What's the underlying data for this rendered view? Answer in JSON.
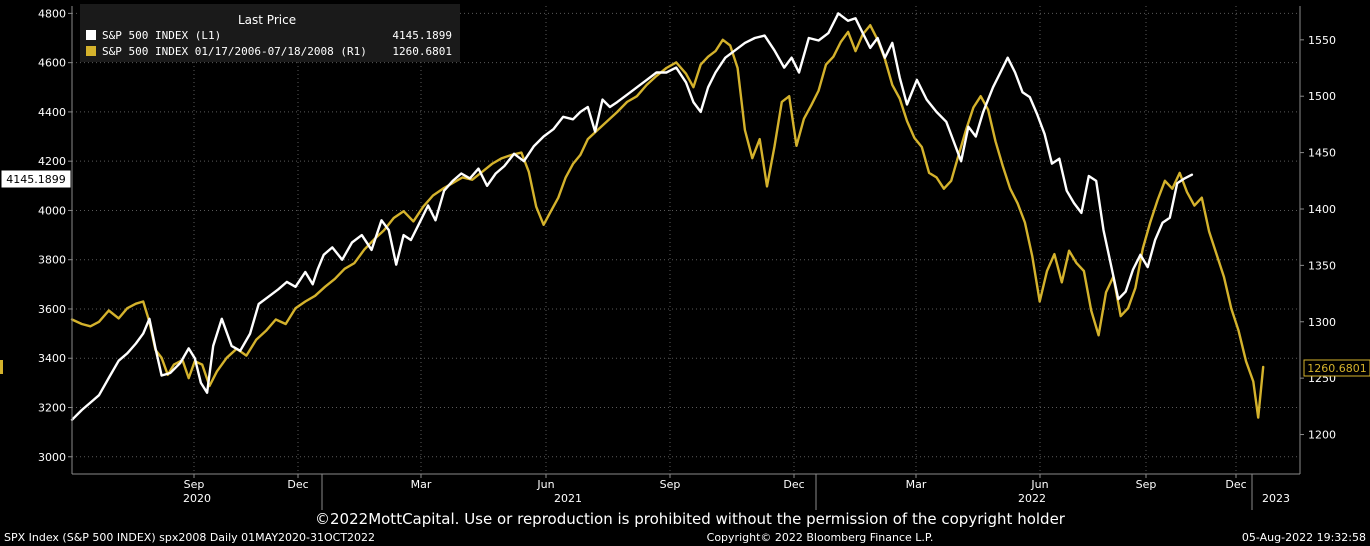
{
  "chart_data": {
    "type": "line",
    "colors": {
      "background": "#000000",
      "grid": "#5a5a5a",
      "axis": "#8a8a8a",
      "series_l1": "#ffffff",
      "series_r1": "#d4b22c",
      "legend_bg": "#1a1a1a"
    },
    "legend": {
      "title": "Last Price",
      "placement": "top-left",
      "entries": [
        {
          "label": "S&P 500 INDEX  (L1)",
          "value": "4145.1899"
        },
        {
          "label": "S&P 500 INDEX 01/17/2006-07/18/2008  (R1)",
          "value": "1260.6801"
        }
      ]
    },
    "left_axis": {
      "ylim": [
        2930,
        4830
      ],
      "ticks": [
        "3000",
        "3200",
        "3400",
        "3600",
        "3800",
        "4000",
        "4200",
        "4400",
        "4600",
        "4800"
      ]
    },
    "right_axis": {
      "ylim": [
        1165,
        1580
      ],
      "ticks": [
        "1200",
        "1250",
        "1300",
        "1350",
        "1400",
        "1450",
        "1500",
        "1550"
      ]
    },
    "x_axis": {
      "month_ticks": [
        "Sep",
        "Dec",
        "Mar",
        "Jun",
        "Sep",
        "Dec",
        "Mar",
        "Jun",
        "Sep",
        "Dec"
      ],
      "year_labels": [
        "2020",
        "2021",
        "2022",
        "2023"
      ]
    },
    "last_value_tags": {
      "left": "4145.1899",
      "right": "1260.6801"
    },
    "series": [
      {
        "name": "S&P 500 INDEX  (L1)",
        "axis": "left",
        "points": [
          [
            0.0,
            3150
          ],
          [
            0.008,
            3190
          ],
          [
            0.015,
            3220
          ],
          [
            0.022,
            3250
          ],
          [
            0.03,
            3320
          ],
          [
            0.038,
            3390
          ],
          [
            0.045,
            3420
          ],
          [
            0.052,
            3460
          ],
          [
            0.058,
            3500
          ],
          [
            0.063,
            3560
          ],
          [
            0.068,
            3440
          ],
          [
            0.073,
            3330
          ],
          [
            0.08,
            3340
          ],
          [
            0.088,
            3380
          ],
          [
            0.095,
            3440
          ],
          [
            0.1,
            3400
          ],
          [
            0.105,
            3300
          ],
          [
            0.11,
            3260
          ],
          [
            0.115,
            3450
          ],
          [
            0.122,
            3560
          ],
          [
            0.13,
            3450
          ],
          [
            0.137,
            3430
          ],
          [
            0.145,
            3500
          ],
          [
            0.152,
            3620
          ],
          [
            0.16,
            3650
          ],
          [
            0.168,
            3680
          ],
          [
            0.175,
            3710
          ],
          [
            0.182,
            3690
          ],
          [
            0.19,
            3750
          ],
          [
            0.196,
            3700
          ],
          [
            0.2,
            3760
          ],
          [
            0.205,
            3820
          ],
          [
            0.212,
            3850
          ],
          [
            0.22,
            3800
          ],
          [
            0.228,
            3870
          ],
          [
            0.236,
            3900
          ],
          [
            0.244,
            3840
          ],
          [
            0.252,
            3960
          ],
          [
            0.258,
            3920
          ],
          [
            0.264,
            3780
          ],
          [
            0.27,
            3900
          ],
          [
            0.276,
            3880
          ],
          [
            0.283,
            3950
          ],
          [
            0.29,
            4020
          ],
          [
            0.296,
            3960
          ],
          [
            0.303,
            4080
          ],
          [
            0.31,
            4120
          ],
          [
            0.317,
            4150
          ],
          [
            0.324,
            4130
          ],
          [
            0.331,
            4170
          ],
          [
            0.338,
            4100
          ],
          [
            0.345,
            4150
          ],
          [
            0.352,
            4180
          ],
          [
            0.36,
            4230
          ],
          [
            0.368,
            4200
          ],
          [
            0.376,
            4260
          ],
          [
            0.384,
            4300
          ],
          [
            0.392,
            4330
          ],
          [
            0.4,
            4380
          ],
          [
            0.408,
            4370
          ],
          [
            0.414,
            4400
          ],
          [
            0.42,
            4420
          ],
          [
            0.426,
            4320
          ],
          [
            0.432,
            4450
          ],
          [
            0.438,
            4420
          ],
          [
            0.444,
            4440
          ],
          [
            0.452,
            4470
          ],
          [
            0.46,
            4500
          ],
          [
            0.468,
            4530
          ],
          [
            0.476,
            4560
          ],
          [
            0.484,
            4560
          ],
          [
            0.492,
            4580
          ],
          [
            0.5,
            4520
          ],
          [
            0.506,
            4440
          ],
          [
            0.512,
            4400
          ],
          [
            0.518,
            4500
          ],
          [
            0.524,
            4560
          ],
          [
            0.532,
            4620
          ],
          [
            0.54,
            4650
          ],
          [
            0.548,
            4680
          ],
          [
            0.556,
            4700
          ],
          [
            0.564,
            4710
          ],
          [
            0.572,
            4650
          ],
          [
            0.58,
            4580
          ],
          [
            0.586,
            4620
          ],
          [
            0.592,
            4560
          ],
          [
            0.6,
            4700
          ],
          [
            0.608,
            4690
          ],
          [
            0.616,
            4720
          ],
          [
            0.624,
            4800
          ],
          [
            0.632,
            4770
          ],
          [
            0.638,
            4780
          ],
          [
            0.644,
            4720
          ],
          [
            0.65,
            4660
          ],
          [
            0.656,
            4700
          ],
          [
            0.662,
            4620
          ],
          [
            0.668,
            4680
          ],
          [
            0.674,
            4540
          ],
          [
            0.68,
            4430
          ],
          [
            0.688,
            4530
          ],
          [
            0.696,
            4450
          ],
          [
            0.704,
            4400
          ],
          [
            0.712,
            4360
          ],
          [
            0.718,
            4280
          ],
          [
            0.724,
            4200
          ],
          [
            0.73,
            4340
          ],
          [
            0.736,
            4300
          ],
          [
            0.742,
            4400
          ],
          [
            0.75,
            4500
          ],
          [
            0.756,
            4560
          ],
          [
            0.762,
            4620
          ],
          [
            0.768,
            4560
          ],
          [
            0.774,
            4480
          ],
          [
            0.78,
            4460
          ],
          [
            0.786,
            4390
          ],
          [
            0.792,
            4310
          ],
          [
            0.798,
            4190
          ],
          [
            0.804,
            4210
          ],
          [
            0.81,
            4080
          ],
          [
            0.816,
            4030
          ],
          [
            0.822,
            3990
          ],
          [
            0.828,
            4140
          ],
          [
            0.834,
            4120
          ],
          [
            0.84,
            3920
          ],
          [
            0.846,
            3780
          ],
          [
            0.852,
            3640
          ],
          [
            0.858,
            3670
          ],
          [
            0.864,
            3760
          ],
          [
            0.87,
            3820
          ],
          [
            0.876,
            3770
          ],
          [
            0.882,
            3880
          ],
          [
            0.888,
            3950
          ],
          [
            0.894,
            3970
          ],
          [
            0.9,
            4110
          ],
          [
            0.906,
            4130
          ],
          [
            0.912,
            4145
          ]
        ]
      },
      {
        "name": "S&P 500 INDEX 01/17/2006-07/18/2008  (R1)",
        "axis": "right",
        "points": [
          [
            0.0,
            1302
          ],
          [
            0.008,
            1298
          ],
          [
            0.015,
            1296
          ],
          [
            0.022,
            1300
          ],
          [
            0.03,
            1310
          ],
          [
            0.038,
            1303
          ],
          [
            0.045,
            1312
          ],
          [
            0.052,
            1316
          ],
          [
            0.058,
            1318
          ],
          [
            0.063,
            1300
          ],
          [
            0.068,
            1275
          ],
          [
            0.073,
            1268
          ],
          [
            0.078,
            1253
          ],
          [
            0.083,
            1262
          ],
          [
            0.09,
            1266
          ],
          [
            0.095,
            1250
          ],
          [
            0.1,
            1265
          ],
          [
            0.106,
            1262
          ],
          [
            0.112,
            1243
          ],
          [
            0.118,
            1256
          ],
          [
            0.126,
            1268
          ],
          [
            0.134,
            1276
          ],
          [
            0.142,
            1270
          ],
          [
            0.15,
            1284
          ],
          [
            0.158,
            1292
          ],
          [
            0.166,
            1302
          ],
          [
            0.174,
            1298
          ],
          [
            0.182,
            1312
          ],
          [
            0.19,
            1318
          ],
          [
            0.198,
            1323
          ],
          [
            0.206,
            1331
          ],
          [
            0.214,
            1338
          ],
          [
            0.222,
            1347
          ],
          [
            0.23,
            1352
          ],
          [
            0.238,
            1364
          ],
          [
            0.246,
            1373
          ],
          [
            0.254,
            1381
          ],
          [
            0.262,
            1392
          ],
          [
            0.27,
            1398
          ],
          [
            0.278,
            1389
          ],
          [
            0.286,
            1402
          ],
          [
            0.294,
            1412
          ],
          [
            0.302,
            1418
          ],
          [
            0.31,
            1423
          ],
          [
            0.318,
            1428
          ],
          [
            0.326,
            1426
          ],
          [
            0.334,
            1433
          ],
          [
            0.342,
            1440
          ],
          [
            0.35,
            1445
          ],
          [
            0.358,
            1448
          ],
          [
            0.366,
            1450
          ],
          [
            0.372,
            1433
          ],
          [
            0.378,
            1402
          ],
          [
            0.384,
            1386
          ],
          [
            0.39,
            1398
          ],
          [
            0.396,
            1410
          ],
          [
            0.402,
            1428
          ],
          [
            0.408,
            1440
          ],
          [
            0.414,
            1448
          ],
          [
            0.42,
            1462
          ],
          [
            0.428,
            1470
          ],
          [
            0.436,
            1478
          ],
          [
            0.444,
            1486
          ],
          [
            0.452,
            1495
          ],
          [
            0.46,
            1500
          ],
          [
            0.468,
            1510
          ],
          [
            0.476,
            1518
          ],
          [
            0.484,
            1525
          ],
          [
            0.492,
            1530
          ],
          [
            0.5,
            1520
          ],
          [
            0.506,
            1508
          ],
          [
            0.512,
            1528
          ],
          [
            0.518,
            1535
          ],
          [
            0.524,
            1540
          ],
          [
            0.53,
            1550
          ],
          [
            0.536,
            1545
          ],
          [
            0.542,
            1525
          ],
          [
            0.548,
            1470
          ],
          [
            0.554,
            1445
          ],
          [
            0.56,
            1462
          ],
          [
            0.566,
            1420
          ],
          [
            0.572,
            1455
          ],
          [
            0.578,
            1495
          ],
          [
            0.584,
            1500
          ],
          [
            0.59,
            1456
          ],
          [
            0.596,
            1480
          ],
          [
            0.602,
            1492
          ],
          [
            0.608,
            1505
          ],
          [
            0.614,
            1528
          ],
          [
            0.62,
            1535
          ],
          [
            0.626,
            1548
          ],
          [
            0.632,
            1557
          ],
          [
            0.638,
            1540
          ],
          [
            0.644,
            1555
          ],
          [
            0.65,
            1563
          ],
          [
            0.656,
            1550
          ],
          [
            0.662,
            1533
          ],
          [
            0.668,
            1510
          ],
          [
            0.674,
            1498
          ],
          [
            0.68,
            1478
          ],
          [
            0.686,
            1463
          ],
          [
            0.692,
            1455
          ],
          [
            0.698,
            1432
          ],
          [
            0.704,
            1428
          ],
          [
            0.71,
            1418
          ],
          [
            0.716,
            1425
          ],
          [
            0.722,
            1448
          ],
          [
            0.728,
            1470
          ],
          [
            0.734,
            1490
          ],
          [
            0.74,
            1500
          ],
          [
            0.746,
            1488
          ],
          [
            0.752,
            1460
          ],
          [
            0.758,
            1438
          ],
          [
            0.764,
            1418
          ],
          [
            0.77,
            1405
          ],
          [
            0.776,
            1388
          ],
          [
            0.782,
            1358
          ],
          [
            0.788,
            1318
          ],
          [
            0.794,
            1345
          ],
          [
            0.8,
            1360
          ],
          [
            0.806,
            1335
          ],
          [
            0.812,
            1363
          ],
          [
            0.818,
            1352
          ],
          [
            0.824,
            1345
          ],
          [
            0.83,
            1310
          ],
          [
            0.836,
            1288
          ],
          [
            0.842,
            1326
          ],
          [
            0.848,
            1340
          ],
          [
            0.854,
            1305
          ],
          [
            0.86,
            1312
          ],
          [
            0.866,
            1330
          ],
          [
            0.872,
            1365
          ],
          [
            0.878,
            1388
          ],
          [
            0.884,
            1408
          ],
          [
            0.89,
            1425
          ],
          [
            0.896,
            1418
          ],
          [
            0.902,
            1432
          ],
          [
            0.908,
            1415
          ],
          [
            0.914,
            1403
          ],
          [
            0.92,
            1410
          ],
          [
            0.926,
            1380
          ],
          [
            0.932,
            1360
          ],
          [
            0.938,
            1340
          ],
          [
            0.944,
            1312
          ],
          [
            0.95,
            1292
          ],
          [
            0.956,
            1265
          ],
          [
            0.962,
            1247
          ],
          [
            0.966,
            1215
          ],
          [
            0.97,
            1260
          ]
        ]
      }
    ]
  },
  "footer": {
    "copyright_notice": "©2022MottCapital. Use or reproduction is prohibited without the permission of the copyright holder",
    "left_info": "SPX Index (S&P 500 INDEX) spx2008  Daily 01MAY2020-31OCT2022",
    "center_info": "Copyright© 2022 Bloomberg Finance L.P.",
    "right_info": "05-Aug-2022 19:32:58"
  }
}
